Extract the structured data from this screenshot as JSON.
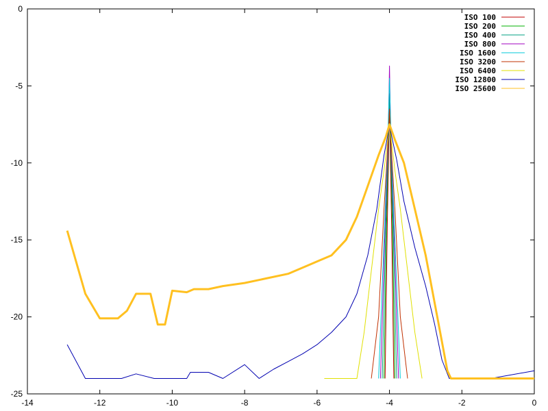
{
  "chart_data": {
    "type": "line",
    "title": "",
    "xlabel": "",
    "ylabel": "",
    "xlim": [
      -14,
      0
    ],
    "ylim": [
      -25,
      0
    ],
    "xticks": [
      -14,
      -12,
      -10,
      -8,
      -6,
      -4,
      -2,
      0
    ],
    "yticks": [
      0,
      -5,
      -10,
      -15,
      -20,
      -25
    ],
    "xtick_labels": [
      "-14",
      "-12",
      "-10",
      "-8",
      "-6",
      "-4",
      "-2",
      "0"
    ],
    "ytick_labels": [
      "0",
      "-5",
      "-10",
      "-15",
      "-20",
      "-25"
    ],
    "grid": false,
    "legend_position": "top-right",
    "series": [
      {
        "name": "ISO 100",
        "color": "#c00000",
        "points": [
          [
            -4.12,
            -24
          ],
          [
            -4.06,
            -14
          ],
          [
            -4.02,
            -9
          ],
          [
            -4.0,
            -5.5
          ],
          [
            -3.98,
            -9
          ],
          [
            -3.94,
            -14
          ],
          [
            -3.88,
            -24
          ]
        ]
      },
      {
        "name": "ISO 200",
        "color": "#00b000",
        "points": [
          [
            -4.15,
            -24
          ],
          [
            -4.08,
            -14
          ],
          [
            -4.03,
            -9
          ],
          [
            -4.0,
            -5.8
          ],
          [
            -3.97,
            -9
          ],
          [
            -3.92,
            -14
          ],
          [
            -3.85,
            -24
          ]
        ]
      },
      {
        "name": "ISO 400",
        "color": "#00a080",
        "points": [
          [
            -4.2,
            -24
          ],
          [
            -4.1,
            -14
          ],
          [
            -4.04,
            -9
          ],
          [
            -4.0,
            -5.6
          ],
          [
            -3.96,
            -9
          ],
          [
            -3.9,
            -14
          ],
          [
            -3.8,
            -24
          ]
        ]
      },
      {
        "name": "ISO 800",
        "color": "#a000c0",
        "points": [
          [
            -4.25,
            -24
          ],
          [
            -4.12,
            -14
          ],
          [
            -4.04,
            -9
          ],
          [
            -4.0,
            -3.7
          ],
          [
            -3.96,
            -9
          ],
          [
            -3.88,
            -14
          ],
          [
            -3.75,
            -24
          ]
        ]
      },
      {
        "name": "ISO 1600",
        "color": "#00c8d8",
        "points": [
          [
            -4.3,
            -24
          ],
          [
            -4.15,
            -15
          ],
          [
            -4.05,
            -9
          ],
          [
            -4.0,
            -4.5
          ],
          [
            -3.95,
            -9
          ],
          [
            -3.85,
            -15
          ],
          [
            -3.7,
            -24
          ]
        ]
      },
      {
        "name": "ISO 3200",
        "color": "#c03000",
        "points": [
          [
            -4.5,
            -24
          ],
          [
            -4.3,
            -20
          ],
          [
            -4.15,
            -13
          ],
          [
            -4.05,
            -9
          ],
          [
            -4.0,
            -6.5
          ],
          [
            -3.95,
            -9
          ],
          [
            -3.85,
            -13
          ],
          [
            -3.7,
            -20
          ],
          [
            -3.5,
            -24
          ]
        ]
      },
      {
        "name": "ISO 6400",
        "color": "#e0e000",
        "points": [
          [
            -5.8,
            -24
          ],
          [
            -4.9,
            -24
          ],
          [
            -4.7,
            -21
          ],
          [
            -4.5,
            -17
          ],
          [
            -4.3,
            -13
          ],
          [
            -4.15,
            -10.5
          ],
          [
            -4.0,
            -7.5
          ],
          [
            -3.85,
            -10.5
          ],
          [
            -3.7,
            -13
          ],
          [
            -3.5,
            -17
          ],
          [
            -3.3,
            -21
          ],
          [
            -3.1,
            -24
          ]
        ]
      },
      {
        "name": "ISO 12800",
        "color": "#0000b0",
        "points": [
          [
            -12.9,
            -21.8
          ],
          [
            -12.4,
            -24
          ],
          [
            -11.4,
            -24
          ],
          [
            -11.0,
            -23.7
          ],
          [
            -10.5,
            -24
          ],
          [
            -9.6,
            -24
          ],
          [
            -9.5,
            -23.6
          ],
          [
            -9.0,
            -23.6
          ],
          [
            -8.6,
            -24
          ],
          [
            -8.0,
            -23.1
          ],
          [
            -7.6,
            -24
          ],
          [
            -7.2,
            -23.4
          ],
          [
            -6.8,
            -22.9
          ],
          [
            -6.4,
            -22.4
          ],
          [
            -6.0,
            -21.8
          ],
          [
            -5.6,
            -21.0
          ],
          [
            -5.2,
            -20.0
          ],
          [
            -4.9,
            -18.5
          ],
          [
            -4.6,
            -16.0
          ],
          [
            -4.35,
            -13.0
          ],
          [
            -4.15,
            -9.5
          ],
          [
            -4.0,
            -7.6
          ],
          [
            -3.8,
            -9.8
          ],
          [
            -3.6,
            -12.5
          ],
          [
            -3.3,
            -15.5
          ],
          [
            -3.0,
            -18.0
          ],
          [
            -2.75,
            -20.5
          ],
          [
            -2.55,
            -22.8
          ],
          [
            -2.35,
            -24
          ],
          [
            -1.2,
            -24
          ],
          [
            0.0,
            -23.5
          ]
        ]
      },
      {
        "name": "ISO 25600",
        "color": "#ffc020",
        "points": [
          [
            -12.9,
            -14.4
          ],
          [
            -12.4,
            -18.5
          ],
          [
            -12.0,
            -20.1
          ],
          [
            -11.5,
            -20.1
          ],
          [
            -11.25,
            -19.6
          ],
          [
            -11.0,
            -18.5
          ],
          [
            -10.6,
            -18.5
          ],
          [
            -10.4,
            -20.5
          ],
          [
            -10.2,
            -20.5
          ],
          [
            -10.0,
            -18.3
          ],
          [
            -9.6,
            -18.4
          ],
          [
            -9.4,
            -18.2
          ],
          [
            -9.0,
            -18.2
          ],
          [
            -8.6,
            -18.0
          ],
          [
            -8.0,
            -17.8
          ],
          [
            -7.4,
            -17.5
          ],
          [
            -6.8,
            -17.2
          ],
          [
            -6.2,
            -16.6
          ],
          [
            -5.6,
            -16.0
          ],
          [
            -5.2,
            -15.0
          ],
          [
            -4.9,
            -13.5
          ],
          [
            -4.6,
            -11.5
          ],
          [
            -4.3,
            -9.5
          ],
          [
            -4.1,
            -8.3
          ],
          [
            -4.0,
            -7.5
          ],
          [
            -3.85,
            -8.5
          ],
          [
            -3.6,
            -10.0
          ],
          [
            -3.3,
            -13.0
          ],
          [
            -3.0,
            -16.0
          ],
          [
            -2.8,
            -18.5
          ],
          [
            -2.6,
            -21.0
          ],
          [
            -2.4,
            -23.5
          ],
          [
            -2.3,
            -24
          ],
          [
            0.0,
            -24
          ]
        ]
      }
    ]
  }
}
